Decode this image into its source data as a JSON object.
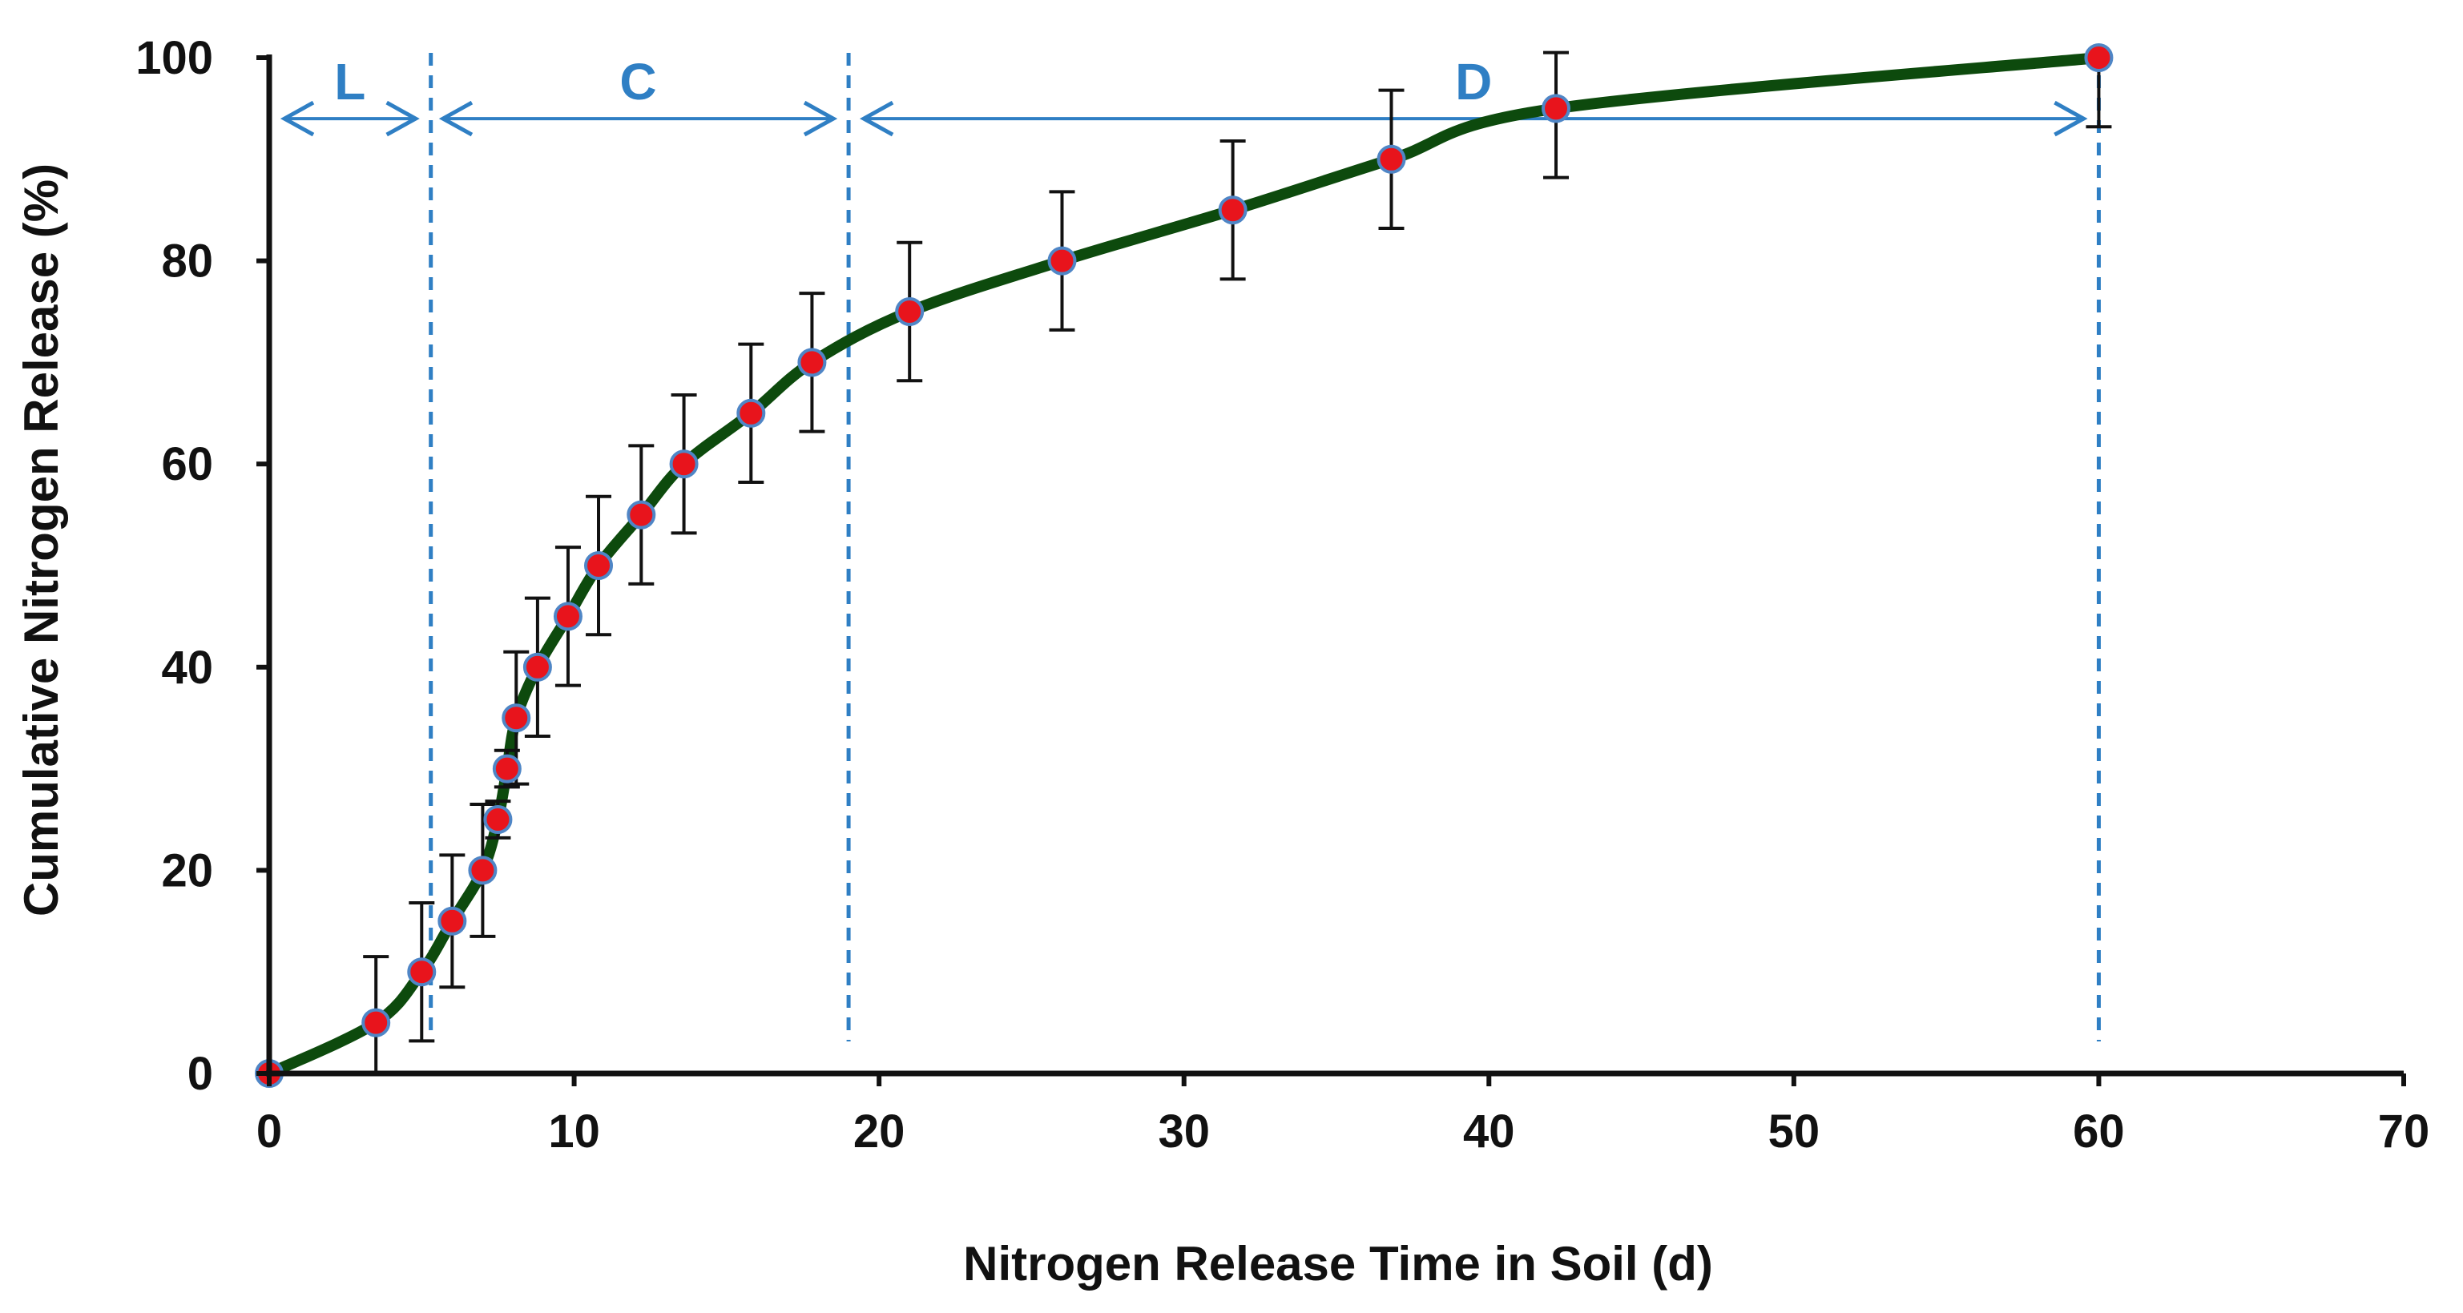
{
  "chart_data": {
    "type": "line",
    "title": "",
    "xlabel": "Nitrogen Release Time in Soil (d)",
    "ylabel": "Cumulative Nitrogen Release (%)",
    "xlim": [
      0,
      70
    ],
    "ylim": [
      0,
      100
    ],
    "x_ticks": [
      "0",
      "10",
      "20",
      "30",
      "40",
      "50",
      "60",
      "70"
    ],
    "y_ticks": [
      "0",
      "20",
      "40",
      "60",
      "80",
      "100"
    ],
    "grid": false,
    "legend": "none",
    "series": [
      {
        "name": "Cumulative Nitrogen Release",
        "x": [
          0,
          3.5,
          5,
          6,
          7,
          7.5,
          7.8,
          8.1,
          8.8,
          9.8,
          10.8,
          12.2,
          13.6,
          15.8,
          17.8,
          21,
          26,
          31.6,
          36.8,
          42.2,
          60
        ],
        "y": [
          0,
          5,
          10,
          15,
          20,
          25,
          30,
          35,
          40,
          45,
          50,
          55,
          60,
          65,
          70,
          75,
          80,
          85,
          90,
          95,
          100
        ],
        "error": [
          0,
          6.5,
          6.8,
          6.5,
          6.5,
          1.8,
          1.8,
          6.5,
          6.8,
          6.8,
          6.8,
          6.8,
          6.8,
          6.8,
          6.8,
          6.8,
          6.8,
          6.8,
          6.8,
          6.8,
          6.8
        ]
      }
    ],
    "phase_boundaries_x": [
      5.3,
      19,
      60
    ],
    "phases": [
      {
        "label": "L",
        "x_start": 0.5,
        "x_end": 4.8,
        "arrow_y": 94
      },
      {
        "label": "C",
        "x_start": 5.7,
        "x_end": 18.5,
        "arrow_y": 94
      },
      {
        "label": "D",
        "x_start": 19.5,
        "x_end": 59.5,
        "arrow_y": 94
      }
    ],
    "colors": {
      "curve": "#0d4a0d",
      "marker_fill": "#e8141c",
      "marker_edge": "#4f86c6",
      "error_bar": "#111111",
      "phase": "#2f7fc4",
      "axis": "#111111"
    }
  }
}
